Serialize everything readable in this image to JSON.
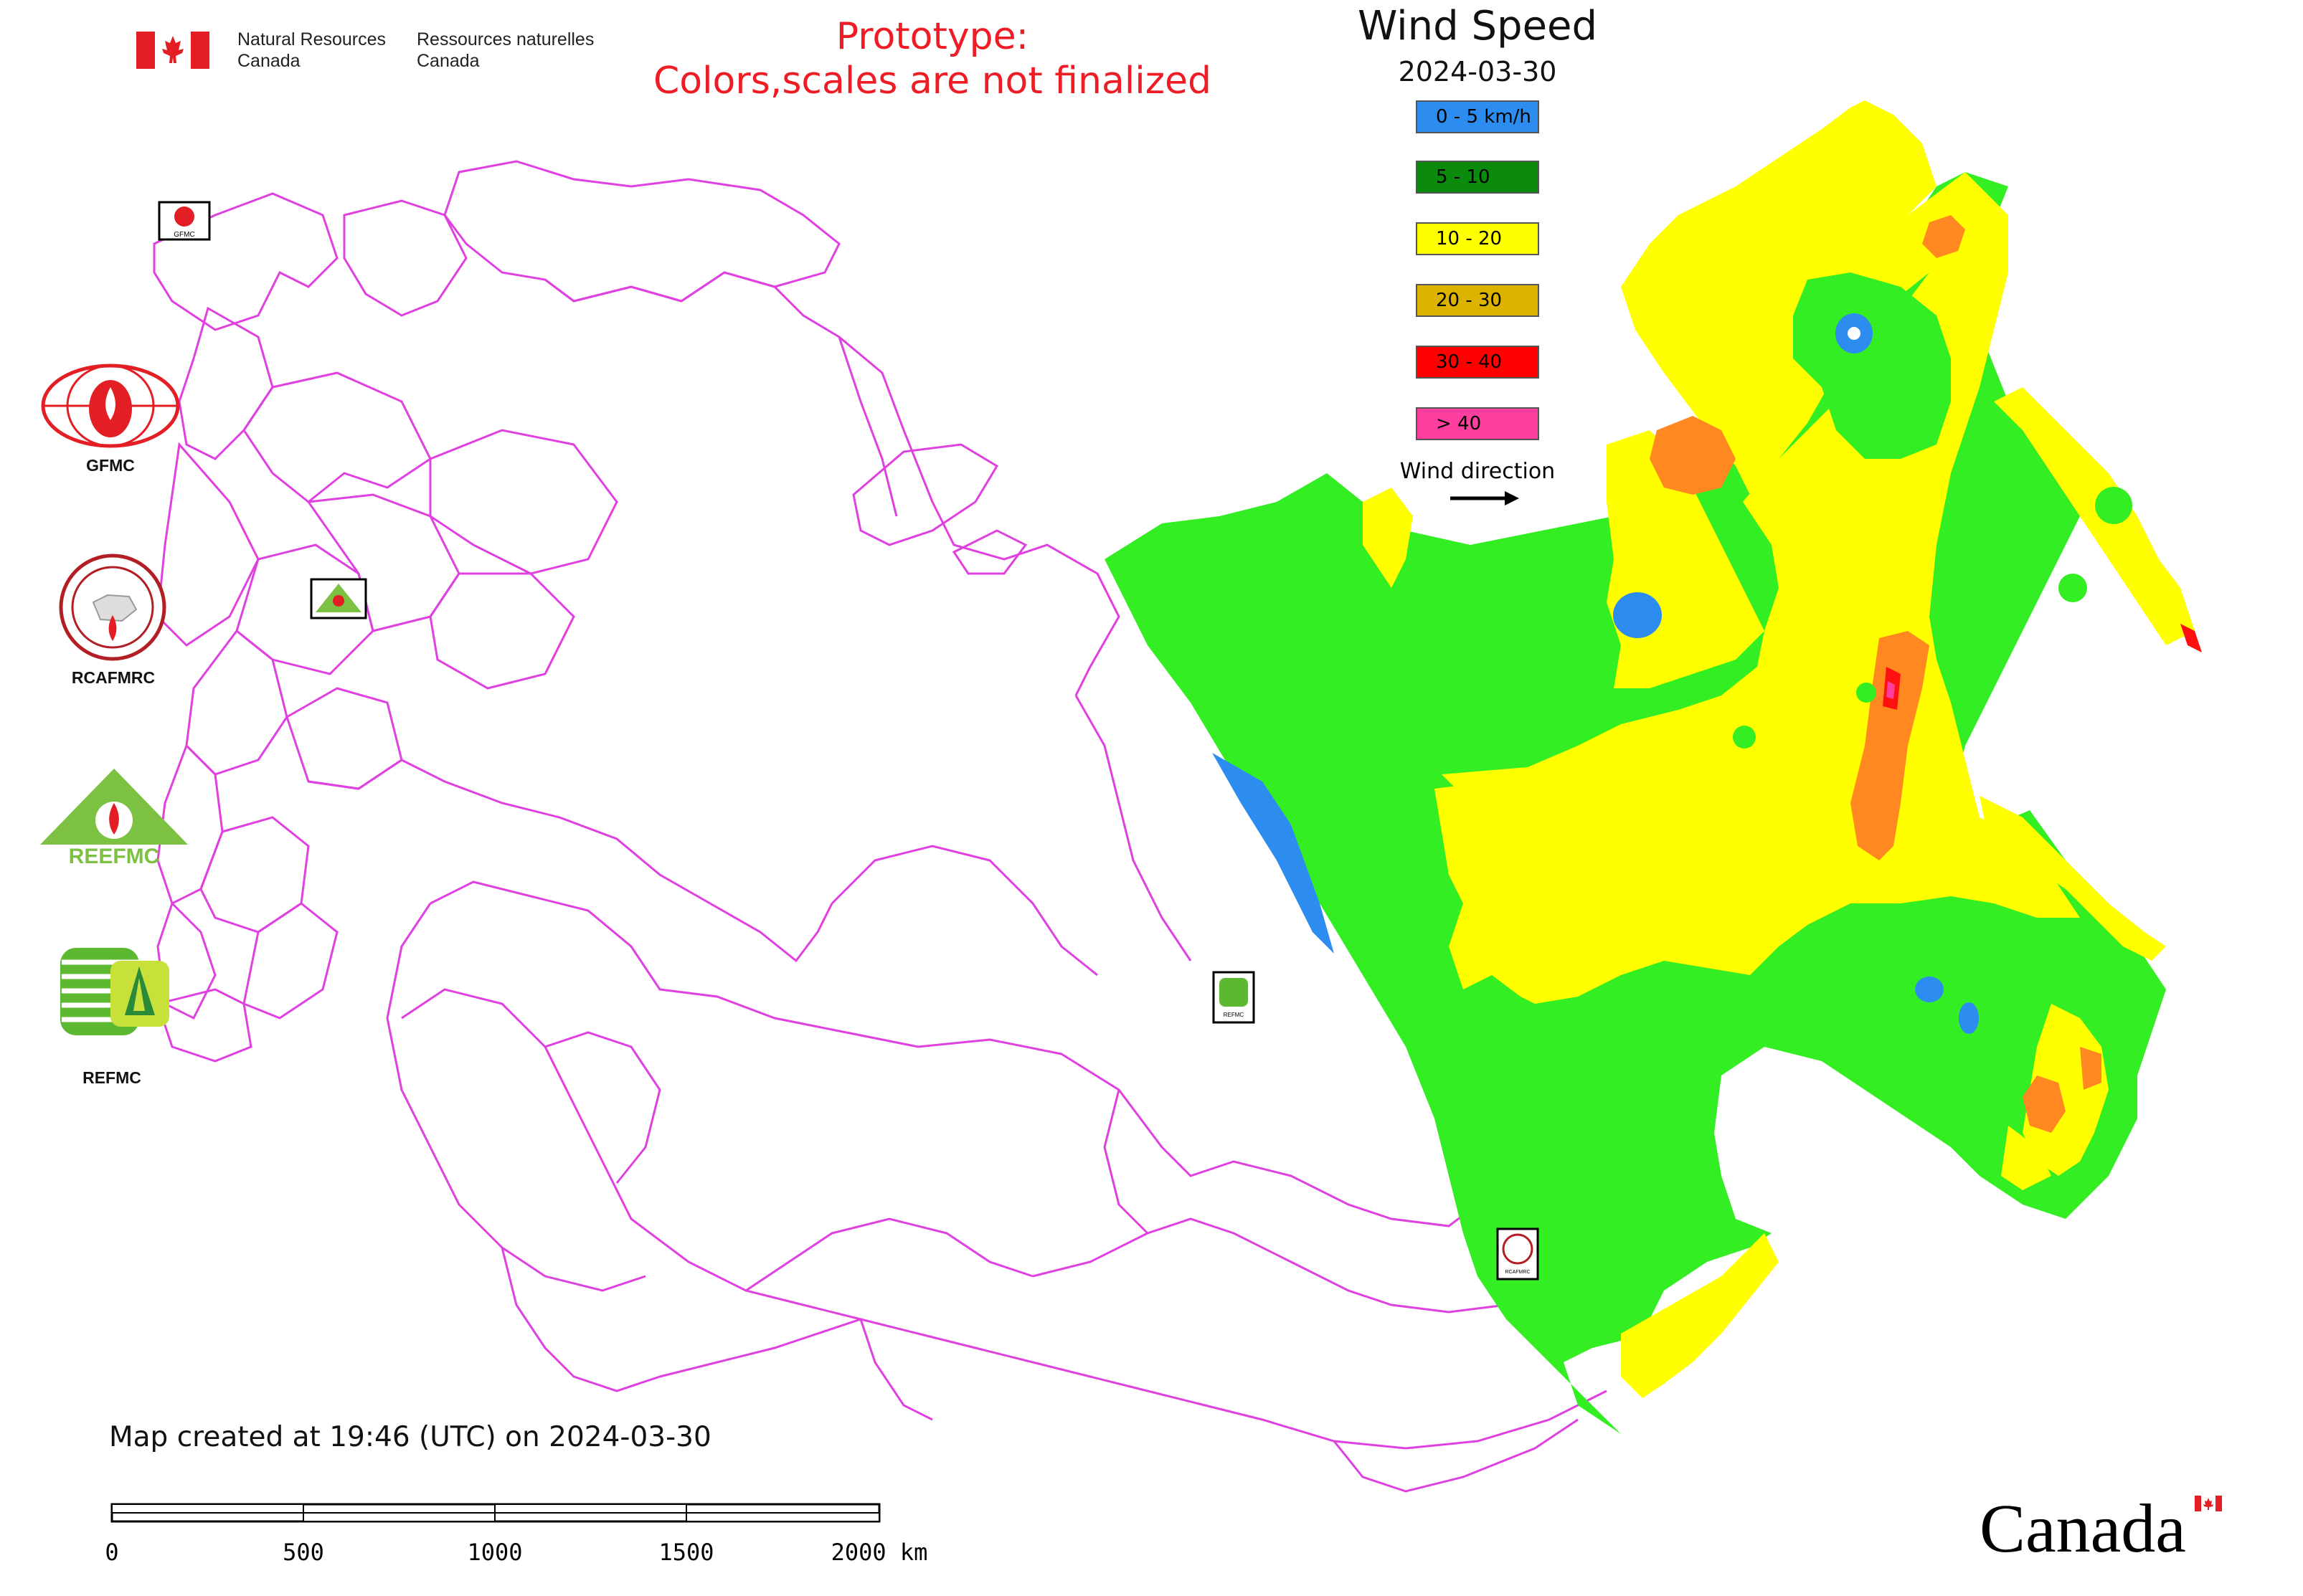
{
  "header": {
    "agency_en_1": "Natural Resources",
    "agency_en_2": "Canada",
    "agency_fr_1": "Ressources naturelles",
    "agency_fr_2": "Canada",
    "prototype_line1": "Prototype:",
    "prototype_line2": "Colors,scales are not finalized"
  },
  "legend": {
    "title": "Wind Speed",
    "date": "2024-03-30",
    "items": [
      {
        "label": "0 - 5 km/h",
        "color": "#2d8cf0"
      },
      {
        "label": "5 - 10",
        "color": "#0b8a0b"
      },
      {
        "label": "10 - 20",
        "color": "#ffff00"
      },
      {
        "label": "20 - 30",
        "color": "#dcb400"
      },
      {
        "label": "30 - 40",
        "color": "#ff0000"
      },
      {
        "label": "> 40",
        "color": "#ff3fa0"
      }
    ],
    "wind_direction_label": "Wind direction"
  },
  "map_colors": {
    "land_green": "#33ee22",
    "yellow": "#ffff00",
    "orange": "#ff8820",
    "blue": "#2d8cf0",
    "red": "#ff1010",
    "border": "#e040e0"
  },
  "organizations": [
    {
      "name": "GFMC",
      "icon": "gfmc-logo-icon"
    },
    {
      "name": "RCAFMRC",
      "icon": "rcafmrc-logo-icon"
    },
    {
      "name": "REEFMC",
      "icon": "reefmc-logo-icon"
    },
    {
      "name": "REFMC",
      "icon": "refmc-logo-icon"
    }
  ],
  "map_markers": [
    {
      "label": "GFMC",
      "icon": "gfmc-marker-icon"
    },
    {
      "label": "REEFMC",
      "icon": "reefmc-marker-icon"
    },
    {
      "label": "REFMC",
      "icon": "refmc-marker-icon"
    },
    {
      "label": "RCAFMRC",
      "icon": "rcafmrc-marker-icon"
    }
  ],
  "footer": {
    "created_text": "Map created at 19:46 (UTC) on 2024-03-30",
    "scale_ticks": [
      "0",
      "500",
      "1000",
      "1500",
      "2000 km"
    ],
    "canada_wordmark": "Canada"
  }
}
